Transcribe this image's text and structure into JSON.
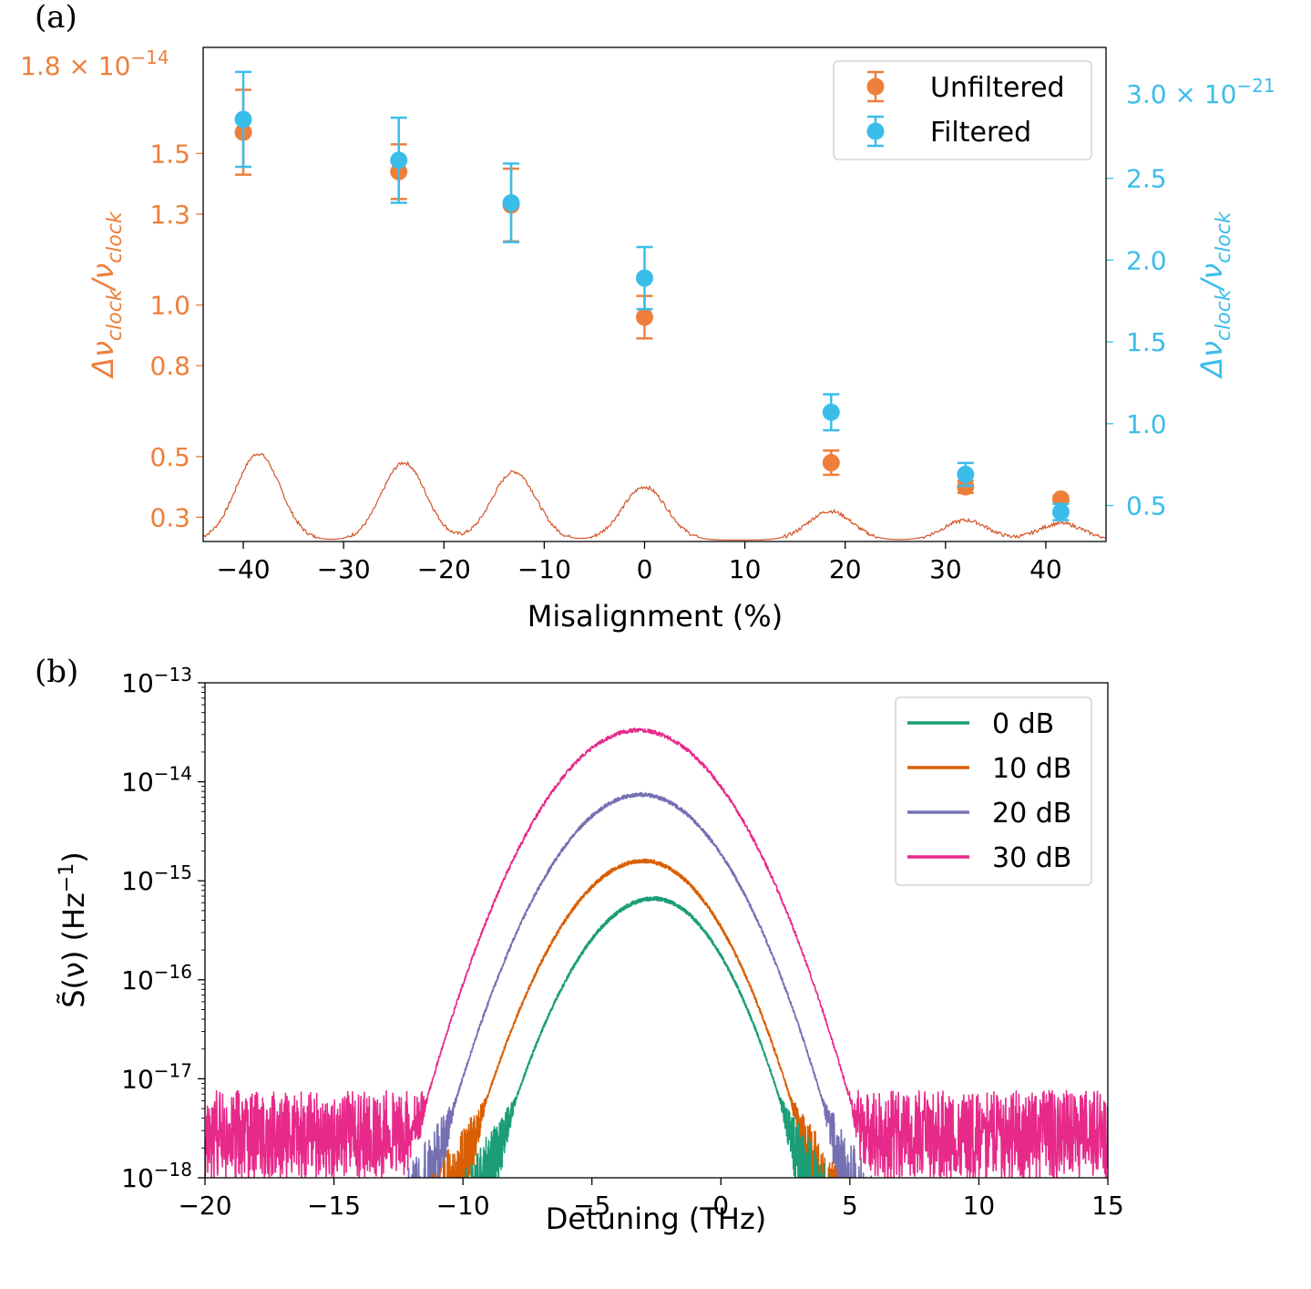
{
  "colors": {
    "unfiltered": "#ee7f3b",
    "filtered": "#3bbdea",
    "spectrum_trace": "#d2562a",
    "s0": "#1b9e77",
    "s10": "#d95f02",
    "s20": "#7570b3",
    "s30": "#e7298a"
  },
  "chart_data": [
    {
      "panel_label": "(a)",
      "type": "scatter",
      "xlabel": "Misalignment (%)",
      "xlim": [
        -44,
        46
      ],
      "x_ticks": [
        -40,
        -30,
        -20,
        -10,
        0,
        10,
        20,
        30,
        40
      ],
      "x_tick_labels": [
        "−40",
        "−30",
        "−20",
        "−10",
        "0",
        "10",
        "20",
        "30",
        "40"
      ],
      "left_axis": {
        "label_main": "Δν",
        "label_sub": "clock",
        "label_div": "/ν",
        "color": "unfiltered",
        "ylim": [
          0.22,
          1.85
        ],
        "ticks": [
          0.3,
          0.5,
          0.8,
          1.0,
          1.3,
          1.5
        ],
        "tick_labels": [
          "0.3",
          "0.5",
          "0.8",
          "1.0",
          "1.3",
          "1.5"
        ],
        "offset_mantissa": "1.8 × 10",
        "offset_exponent": "−14"
      },
      "right_axis": {
        "label_main": "Δν",
        "label_sub": "clock",
        "label_div": "/ν",
        "color": "filtered",
        "ylim": [
          0.28,
          3.3
        ],
        "ticks": [
          0.5,
          1.0,
          1.5,
          2.0,
          2.5
        ],
        "tick_labels": [
          "0.5",
          "1.0",
          "1.5",
          "2.0",
          "2.5"
        ],
        "offset_mantissa": "3.0 × 10",
        "offset_exponent": "−21"
      },
      "series": [
        {
          "name": "Unfiltered",
          "axis": "left",
          "x": [
            -40,
            -24.5,
            -13.3,
            0,
            18.6,
            32,
            41.5
          ],
          "y": [
            1.57,
            1.44,
            1.33,
            0.96,
            0.48,
            0.4,
            0.36
          ],
          "yerr": [
            0.14,
            0.09,
            0.12,
            0.07,
            0.04,
            0.02,
            0.01
          ]
        },
        {
          "name": "Filtered",
          "axis": "right",
          "x": [
            -40,
            -24.5,
            -13.3,
            0,
            18.6,
            32,
            41.5
          ],
          "y": [
            2.86,
            2.61,
            2.35,
            1.89,
            1.07,
            0.69,
            0.46
          ],
          "yerr": [
            0.29,
            0.26,
            0.24,
            0.19,
            0.11,
            0.07,
            0.05
          ]
        }
      ],
      "background_trace": {
        "name": "spectrum",
        "peaks": [
          {
            "x": -38.5,
            "height": 0.51
          },
          {
            "x": -24,
            "height": 0.48
          },
          {
            "x": -13,
            "height": 0.45
          },
          {
            "x": 0,
            "height": 0.4
          },
          {
            "x": 18.5,
            "height": 0.32
          },
          {
            "x": 32,
            "height": 0.29
          },
          {
            "x": 41.5,
            "height": 0.28
          }
        ],
        "baseline": 0.225
      },
      "legend": {
        "position": "top-right"
      }
    },
    {
      "panel_label": "(b)",
      "type": "line",
      "xlabel": "Detuning (THz)",
      "ylabel_pre": "S̃(ν) (Hz",
      "ylabel_exp": "−1",
      "ylabel_post": ")",
      "yscale": "log",
      "xlim": [
        -20,
        15
      ],
      "ylim": [
        1e-18,
        1e-13
      ],
      "x_ticks": [
        -20,
        -15,
        -10,
        -5,
        0,
        5,
        10,
        15
      ],
      "x_tick_labels": [
        "−20",
        "−15",
        "−10",
        "−5",
        "0",
        "5",
        "10",
        "15"
      ],
      "y_ticks": [
        -18,
        -17,
        -16,
        -15,
        -14,
        -13
      ],
      "y_tick_base": "10",
      "y_tick_exponents": [
        "−18",
        "−17",
        "−16",
        "−15",
        "−14",
        "−13"
      ],
      "series": [
        {
          "name": "0 dB",
          "color": "s0",
          "peak_x": -2.6,
          "peak_log": -15.18,
          "sl": 2.3,
          "sr": 2.1,
          "cut_left": -10.4,
          "cut_right": 5.0,
          "floor_log": -18.5
        },
        {
          "name": "10 dB",
          "color": "s10",
          "peak_x": -3.0,
          "peak_log": -14.8,
          "sl": 2.4,
          "sr": 2.25,
          "cut_left": -11.5,
          "cut_right": 7.2,
          "floor_log": -18.5
        },
        {
          "name": "20 dB",
          "color": "s20",
          "peak_x": -3.1,
          "peak_log": -14.13,
          "sl": 2.5,
          "sr": 2.45,
          "cut_left": -14.0,
          "cut_right": 9.6,
          "floor_log": -18.5
        },
        {
          "name": "30 dB",
          "color": "s30",
          "peak_x": -3.2,
          "peak_log": -13.48,
          "sl": 2.6,
          "sr": 2.6,
          "cut_left": -20.0,
          "cut_right": 15.0,
          "floor_log": -17.75
        }
      ],
      "legend": {
        "position": "top-right"
      }
    }
  ]
}
